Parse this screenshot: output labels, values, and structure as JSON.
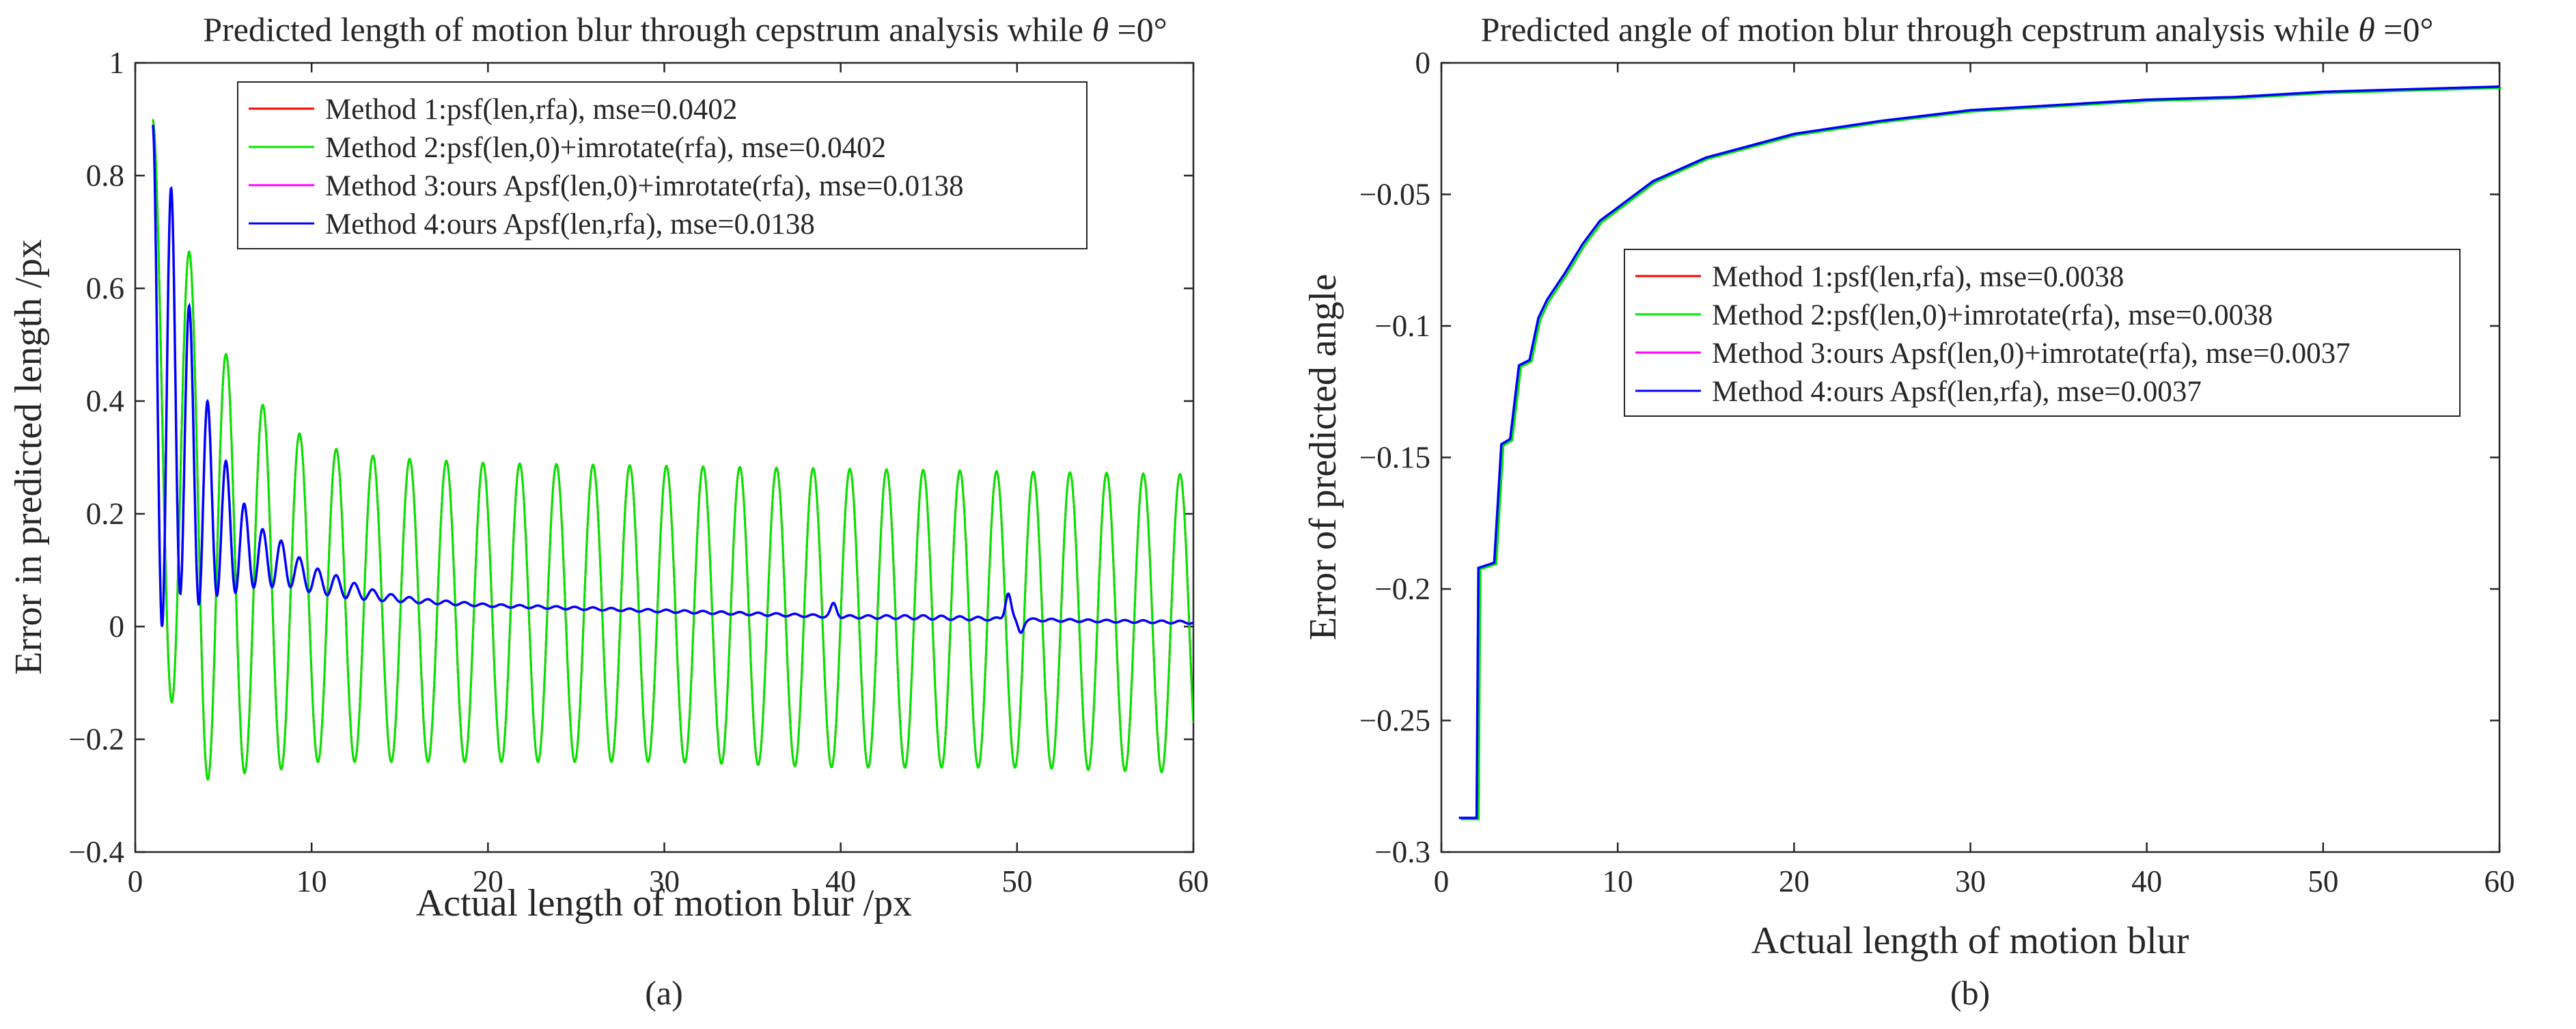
{
  "figure": {
    "captions": [
      "(a)",
      "(b)"
    ]
  },
  "chart_data": [
    {
      "type": "line",
      "title_prefix": "Predicted length of motion blur through cepstrum analysis while ",
      "title_theta": "θ",
      "title_suffix": " =0°",
      "xlabel": "Actual length of motion blur /px",
      "ylabel": "Error in predicted length /px",
      "xlim": [
        0,
        60
      ],
      "ylim": [
        -0.4,
        1
      ],
      "xticks": [
        0,
        10,
        20,
        30,
        40,
        50,
        60
      ],
      "xtick_labels": [
        "0",
        "10",
        "20",
        "30",
        "40",
        "50",
        "60"
      ],
      "yticks": [
        -0.4,
        -0.2,
        0,
        0.2,
        0.4,
        0.6,
        0.8,
        1
      ],
      "ytick_labels": [
        "−0.4",
        "−0.2",
        "0",
        "0.2",
        "0.4",
        "0.6",
        "0.8",
        "1"
      ],
      "legend_position": "top-right",
      "series": [
        {
          "name": "Method 1:psf(len,rfa), mse=0.0402",
          "color": "#ff0000",
          "model": "oscillating"
        },
        {
          "name": "Method 2:psf(len,0)+imrotate(rfa), mse=0.0402",
          "color": "#00e600",
          "model": "oscillating"
        },
        {
          "name": "Method 3:ours Apsf(len,0)+imrotate(rfa), mse=0.0138",
          "color": "#ff00ff",
          "model": "damped"
        },
        {
          "name": "Method 4:ours Apsf(len,rfa), mse=0.0138",
          "color": "#0000ff",
          "model": "damped"
        }
      ],
      "oscillation_period": 2.08,
      "upper_envelope": {
        "x": [
          1,
          2.2,
          4.3,
          6.3,
          8.4,
          10.5,
          14,
          20,
          30,
          40,
          50,
          60
        ],
        "y": [
          0.9,
          0.76,
          0.53,
          0.42,
          0.36,
          0.32,
          0.3,
          0.29,
          0.285,
          0.28,
          0.275,
          0.27
        ]
      },
      "lower_envelope": {
        "x": [
          1,
          3.2,
          5.3,
          7.4,
          10,
          20,
          30,
          40,
          50,
          60
        ],
        "y": [
          0.0,
          -0.28,
          -0.26,
          -0.26,
          -0.24,
          -0.24,
          -0.24,
          -0.25,
          -0.25,
          -0.26
        ]
      },
      "damped_peaks": {
        "x": [
          1,
          2.2,
          3.2,
          4.3,
          5.3,
          6.3,
          7.3,
          8.4,
          9.4,
          10.5,
          11.5,
          12.6,
          14,
          16,
          20,
          25,
          30,
          35,
          40,
          45,
          50,
          55,
          60
        ],
        "y": [
          0.89,
          0.76,
          0.54,
          0.37,
          0.28,
          0.21,
          0.17,
          0.15,
          0.12,
          0.1,
          0.09,
          0.075,
          0.06,
          0.05,
          0.04,
          0.035,
          0.03,
          0.025,
          0.02,
          0.02,
          0.015,
          0.012,
          0.01
        ]
      },
      "damped_troughs": {
        "x": [
          1.9,
          2.8,
          3.8,
          4.8,
          5.8,
          6.8,
          7.9,
          8.9,
          10,
          12,
          14,
          20,
          30,
          40,
          60
        ],
        "y": [
          0.0,
          0.08,
          0.03,
          0.06,
          0.06,
          0.07,
          0.07,
          0.07,
          0.06,
          0.05,
          0.045,
          0.035,
          0.025,
          0.015,
          0.005
        ]
      },
      "damped_glitches": [
        {
          "x": 39.6,
          "y": 0.04
        },
        {
          "x": 49.5,
          "y": 0.06
        },
        {
          "x": 50.2,
          "y": -0.01
        }
      ]
    },
    {
      "type": "line",
      "title_prefix": "Predicted angle of motion blur through cepstrum analysis while ",
      "title_theta": "θ",
      "title_suffix": " =0°",
      "xlabel": "Actual length of motion blur",
      "ylabel": "Error of predicted angle",
      "xlim": [
        0,
        60
      ],
      "ylim": [
        -0.3,
        0
      ],
      "xticks": [
        0,
        10,
        20,
        30,
        40,
        50,
        60
      ],
      "xtick_labels": [
        "0",
        "10",
        "20",
        "30",
        "40",
        "50",
        "60"
      ],
      "yticks": [
        -0.3,
        -0.25,
        -0.2,
        -0.15,
        -0.1,
        -0.05,
        0
      ],
      "ytick_labels": [
        "−0.3",
        "−0.25",
        "−0.2",
        "−0.15",
        "−0.1",
        "−0.05",
        "0"
      ],
      "legend_position": "center-right",
      "series": [
        {
          "name": "Method 1:psf(len,rfa), mse=0.0038",
          "color": "#ff0000"
        },
        {
          "name": "Method 2:psf(len,0)+imrotate(rfa), mse=0.0038",
          "color": "#00e600"
        },
        {
          "name": "Method 3:ours Apsf(len,0)+imrotate(rfa), mse=0.0037",
          "color": "#ff00ff"
        },
        {
          "name": "Method 4:ours Apsf(len,rfa), mse=0.0037",
          "color": "#0000ff"
        }
      ],
      "angle_curve": {
        "x": [
          1,
          2,
          2.1,
          3,
          3.4,
          3.9,
          4.4,
          5,
          5.5,
          6,
          7,
          8,
          9,
          10,
          12,
          15,
          20,
          25,
          30,
          35,
          40,
          45,
          50,
          55,
          60
        ],
        "y": [
          -0.287,
          -0.287,
          -0.192,
          -0.19,
          -0.145,
          -0.143,
          -0.115,
          -0.113,
          -0.097,
          -0.09,
          -0.08,
          -0.069,
          -0.06,
          -0.055,
          -0.045,
          -0.036,
          -0.027,
          -0.022,
          -0.018,
          -0.016,
          -0.014,
          -0.013,
          -0.011,
          -0.01,
          -0.009
        ]
      }
    }
  ]
}
